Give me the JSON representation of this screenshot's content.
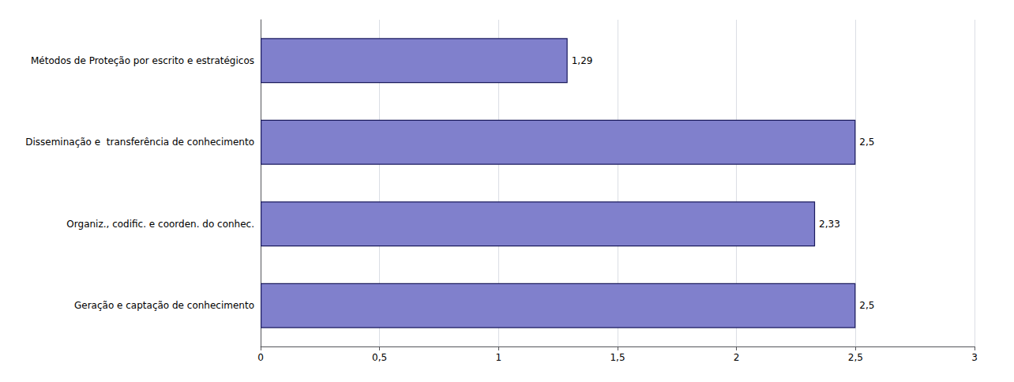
{
  "chart_data": {
    "type": "bar",
    "orientation": "horizontal",
    "categories": [
      "Geração e captação de conhecimento",
      "Organiz., codific. e coorden. do conhec.",
      "Disseminação e  transferência de conhecimento",
      "Métodos de Proteção por escrito e estratégicos"
    ],
    "values": [
      2.5,
      2.33,
      2.5,
      1.29
    ],
    "value_labels": [
      "2,5",
      "2,33",
      "2,5",
      "1,29"
    ],
    "data_labels": true,
    "color": "#8080cc",
    "xlim": [
      0,
      3
    ],
    "xticks": [
      0,
      {
        "value": 0.5,
        "label": "0,5"
      },
      1,
      {
        "value": 1.5,
        "label": "1,5"
      },
      2,
      {
        "value": 2.5,
        "label": "2,5"
      },
      3
    ],
    "grid": true
  }
}
